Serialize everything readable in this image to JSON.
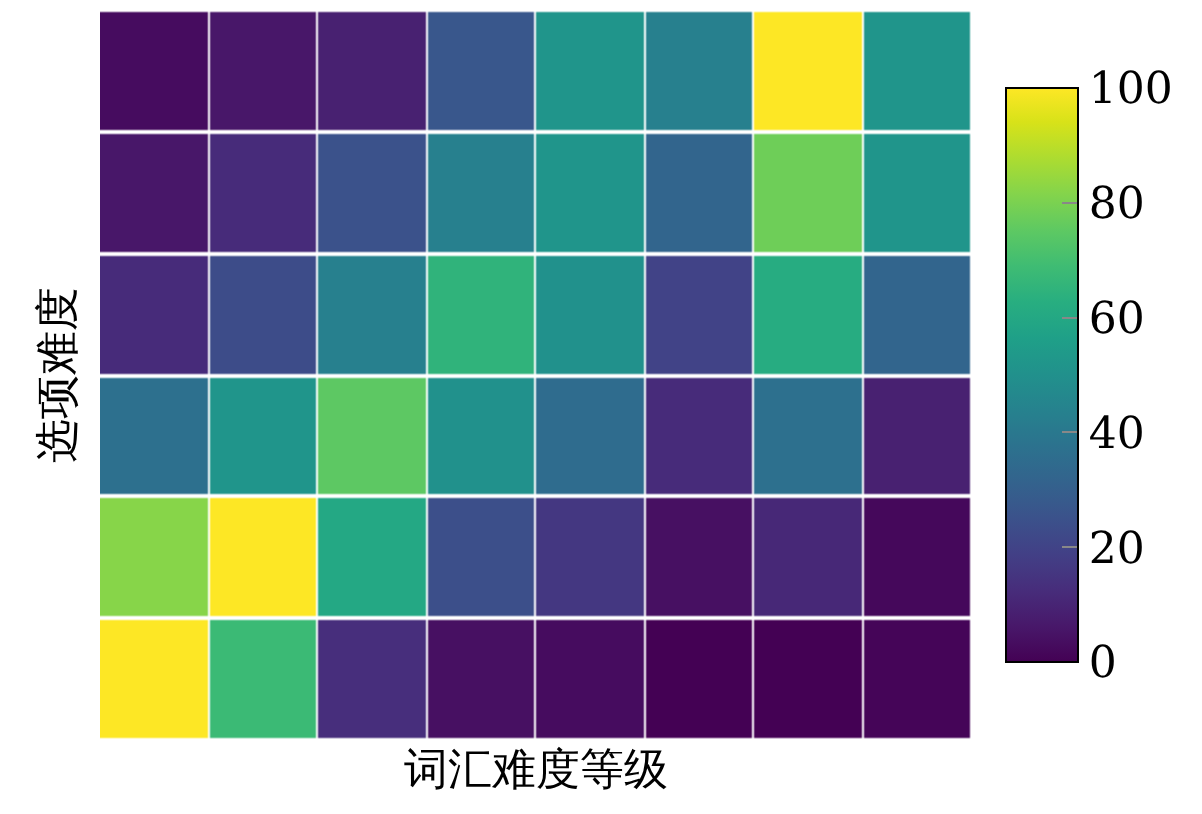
{
  "chart_data": {
    "type": "heatmap",
    "xlabel": "词汇难度等级",
    "ylabel": "选项难度",
    "categories": [
      null,
      null,
      null,
      null,
      null,
      null,
      null,
      null
    ],
    "y_categories": [
      null,
      null,
      null,
      null,
      null,
      null
    ],
    "cells": [
      [
        3,
        6,
        9,
        27,
        52,
        43,
        100,
        52
      ],
      [
        6,
        12,
        25,
        43,
        52,
        32,
        78,
        52
      ],
      [
        12,
        23,
        43,
        65,
        50,
        20,
        62,
        32
      ],
      [
        37,
        52,
        75,
        50,
        35,
        12,
        37,
        9
      ],
      [
        82,
        100,
        60,
        24,
        16,
        4,
        11,
        2
      ],
      [
        100,
        68,
        13,
        4,
        3,
        0,
        0,
        1
      ]
    ],
    "clim": [
      0,
      100
    ],
    "cticks": [
      0,
      20,
      40,
      60,
      80,
      100
    ]
  }
}
